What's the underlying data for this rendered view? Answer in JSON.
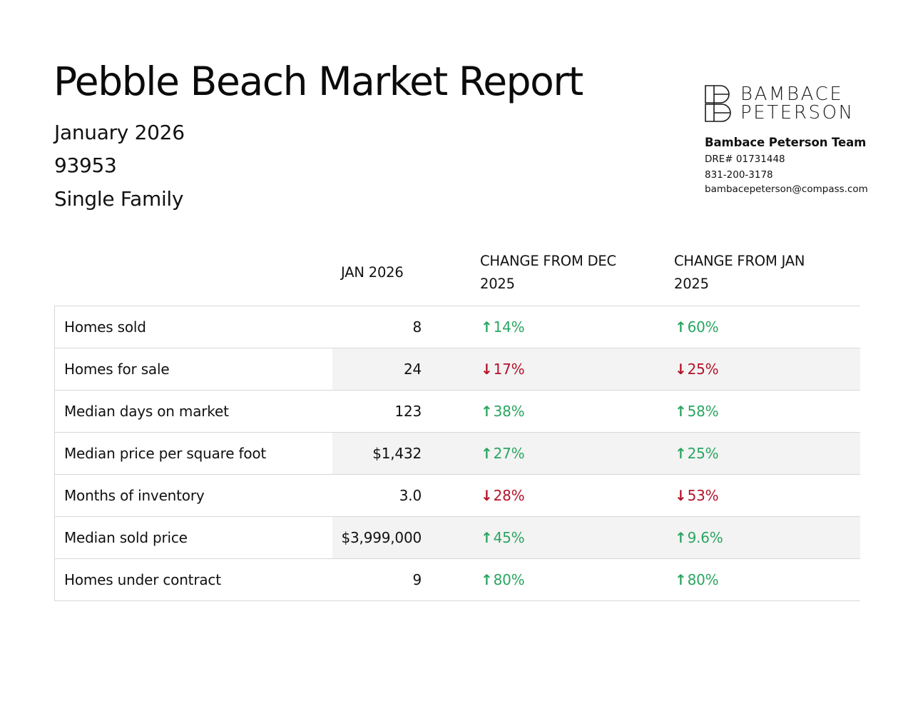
{
  "header": {
    "title": "Pebble Beach Market Report",
    "date": "January 2026",
    "zip": "93953",
    "property_type": "Single Family"
  },
  "brand": {
    "wordmark_line1": "BAMBACE",
    "wordmark_line2": "PETERSON",
    "team": "Bambace Peterson Team",
    "dre": "DRE# 01731448",
    "phone": "831-200-3178",
    "email": "bambacepeterson@compass.com"
  },
  "table": {
    "headers": [
      "",
      "JAN 2026",
      "CHANGE FROM DEC 2025",
      "CHANGE FROM JAN 2025"
    ],
    "rows": [
      {
        "label": "Homes sold",
        "value": "8",
        "dec": {
          "dir": "up",
          "text": "14%"
        },
        "jan": {
          "dir": "up",
          "text": "60%"
        }
      },
      {
        "label": "Homes for sale",
        "value": "24",
        "dec": {
          "dir": "down",
          "text": "17%"
        },
        "jan": {
          "dir": "down",
          "text": "25%"
        }
      },
      {
        "label": "Median days on market",
        "value": "123",
        "dec": {
          "dir": "up",
          "text": "38%"
        },
        "jan": {
          "dir": "up",
          "text": "58%"
        }
      },
      {
        "label": "Median price per square foot",
        "value": "$1,432",
        "dec": {
          "dir": "up",
          "text": "27%"
        },
        "jan": {
          "dir": "up",
          "text": "25%"
        }
      },
      {
        "label": "Months of inventory",
        "value": "3.0",
        "dec": {
          "dir": "down",
          "text": "28%"
        },
        "jan": {
          "dir": "down",
          "text": "53%"
        }
      },
      {
        "label": "Median sold price",
        "value": "$3,999,000",
        "dec": {
          "dir": "up",
          "text": "45%"
        },
        "jan": {
          "dir": "up",
          "text": "9.6%"
        }
      },
      {
        "label": "Homes under contract",
        "value": "9",
        "dec": {
          "dir": "up",
          "text": "80%"
        },
        "jan": {
          "dir": "up",
          "text": "80%"
        }
      }
    ]
  },
  "colors": {
    "up": "#2aa561",
    "down": "#b3132a",
    "shade": "#f3f3f3",
    "border": "#d8d8d8"
  },
  "icons": {
    "up": "arrow-up-icon",
    "down": "arrow-down-icon"
  }
}
